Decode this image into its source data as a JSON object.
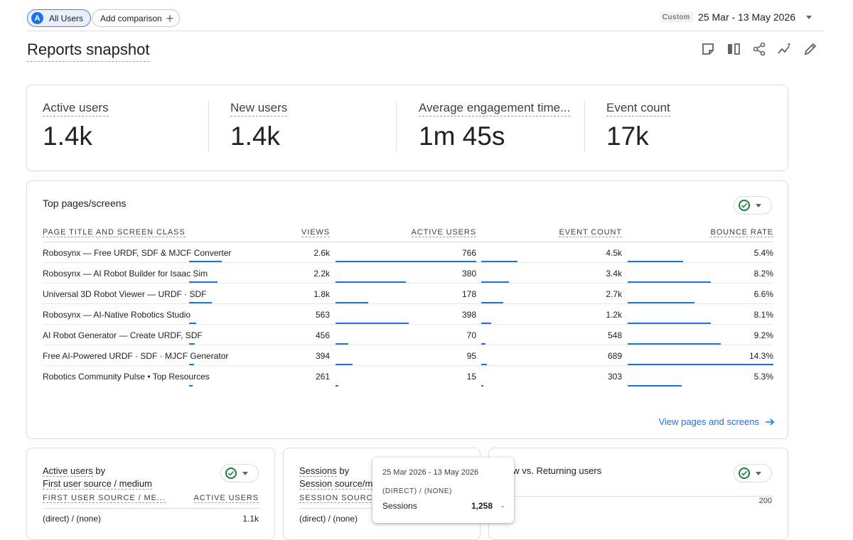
{
  "topbar": {
    "users_avatar": "A",
    "users_label": "All Users",
    "add_comparison": "Add comparison",
    "date_tag": "Custom",
    "date_range": "25 Mar - 13 May 2026"
  },
  "page": {
    "title": "Reports snapshot"
  },
  "metrics": [
    {
      "label": "Active users",
      "value": "1.4k"
    },
    {
      "label": "New users",
      "value": "1.4k"
    },
    {
      "label": "Average engagement time...",
      "value": "1m 45s"
    },
    {
      "label": "Event count",
      "value": "17k"
    }
  ],
  "top_pages": {
    "title": "Top pages/screens",
    "columns": [
      "PAGE TITLE AND SCREEN CLASS",
      "VIEWS",
      "ACTIVE USERS",
      "EVENT COUNT",
      "BOUNCE RATE"
    ],
    "rows": [
      {
        "title": "Robosynx — Free URDF, SDF & MJCF Converter",
        "views": "2.6k",
        "active_users": "766",
        "event_count": "4.5k",
        "bounce_rate": "5.4%"
      },
      {
        "title": "Robosynx — AI Robot Builder for Isaac Sim",
        "views": "2.2k",
        "active_users": "380",
        "event_count": "3.4k",
        "bounce_rate": "8.2%"
      },
      {
        "title": "Universal 3D Robot Viewer — URDF · SDF",
        "views": "1.8k",
        "active_users": "178",
        "event_count": "2.7k",
        "bounce_rate": "6.6%"
      },
      {
        "title": "Robosynx — AI-Native Robotics Studio",
        "views": "563",
        "active_users": "398",
        "event_count": "1.2k",
        "bounce_rate": "8.1%"
      },
      {
        "title": "AI Robot Generator — Create URDF, SDF",
        "views": "456",
        "active_users": "70",
        "event_count": "548",
        "bounce_rate": "9.2%"
      },
      {
        "title": "Free AI-Powered URDF · SDF · MJCF Generator",
        "views": "394",
        "active_users": "95",
        "event_count": "689",
        "bounce_rate": "14.3%"
      },
      {
        "title": "Robotics Community Pulse • Top Resources",
        "views": "261",
        "active_users": "15",
        "event_count": "303",
        "bounce_rate": "5.3%"
      }
    ],
    "bar_fractions": {
      "views": [
        0.23,
        0.2,
        0.16,
        0.05,
        0.04,
        0.035,
        0.025
      ],
      "active_users": [
        1.0,
        0.5,
        0.23,
        0.52,
        0.09,
        0.12,
        0.02
      ],
      "event_count": [
        0.26,
        0.195,
        0.155,
        0.07,
        0.03,
        0.04,
        0.017
      ],
      "bounce_rate": [
        0.38,
        0.57,
        0.46,
        0.57,
        0.64,
        1.0,
        0.37
      ]
    },
    "view_link": "View pages and screens"
  },
  "card_first_source": {
    "title_metric": "Active users",
    "title_by": " by",
    "title_dim": "First user source / medium",
    "col1": "FIRST USER SOURCE / ME...",
    "col2": "ACTIVE USERS",
    "row1_dim": "(direct) / (none)",
    "row1_val": "1.1k"
  },
  "card_sessions": {
    "title_metric": "Sessions",
    "title_by": " by",
    "title_dim": "Session source/m",
    "col1": "SESSION SOURCE/",
    "row1_dim": "(direct) / (none)"
  },
  "card_new_returning": {
    "title": "ew vs. Returning users",
    "axis_value": "200"
  },
  "tooltip": {
    "date": "25 Mar 2026 - 13 May 2026",
    "dimension": "(DIRECT) / (NONE)",
    "metric": "Sessions",
    "value": "1,258",
    "change": "-"
  }
}
